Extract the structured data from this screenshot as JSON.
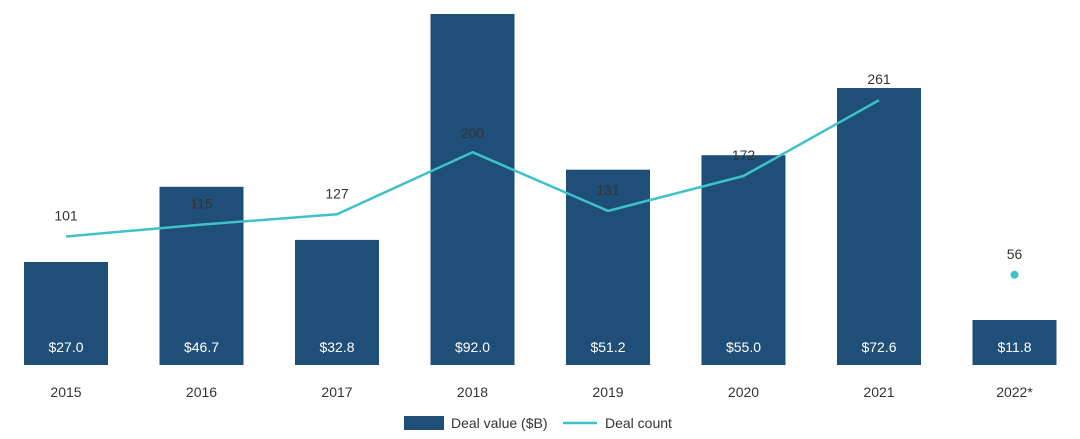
{
  "chart_data": {
    "type": "bar",
    "title": "",
    "xlabel": "",
    "ylabel": "",
    "categories": [
      "2015",
      "2016",
      "2017",
      "2018",
      "2019",
      "2020",
      "2021",
      "2022*"
    ],
    "series": [
      {
        "name": "Deal value ($B)",
        "type": "bar",
        "values": [
          27.0,
          46.7,
          32.8,
          92.0,
          51.2,
          55.0,
          72.6,
          11.8
        ],
        "labels": [
          "$27.0",
          "$46.7",
          "$32.8",
          "$92.0",
          "$51.2",
          "$55.0",
          "$72.6",
          "$11.8"
        ]
      },
      {
        "name": "Deal count",
        "type": "line",
        "values": [
          101,
          115,
          127,
          200,
          131,
          172,
          261,
          56
        ],
        "labels": [
          "101",
          "115",
          "127",
          "200",
          "131",
          "172",
          "261",
          "56"
        ],
        "connected_through_index": 6
      }
    ],
    "bar_ylim": [
      0,
      92
    ],
    "count_ylim": [
      0,
      320
    ],
    "grid": false,
    "legend_position": "bottom-center",
    "colors": {
      "bar": "#1f4e79",
      "line": "#3fc1c9",
      "text": "#333333",
      "bar_label": "#ffffff"
    }
  },
  "legend": {
    "bar_label": "Deal value ($B)",
    "line_label": "Deal count"
  }
}
